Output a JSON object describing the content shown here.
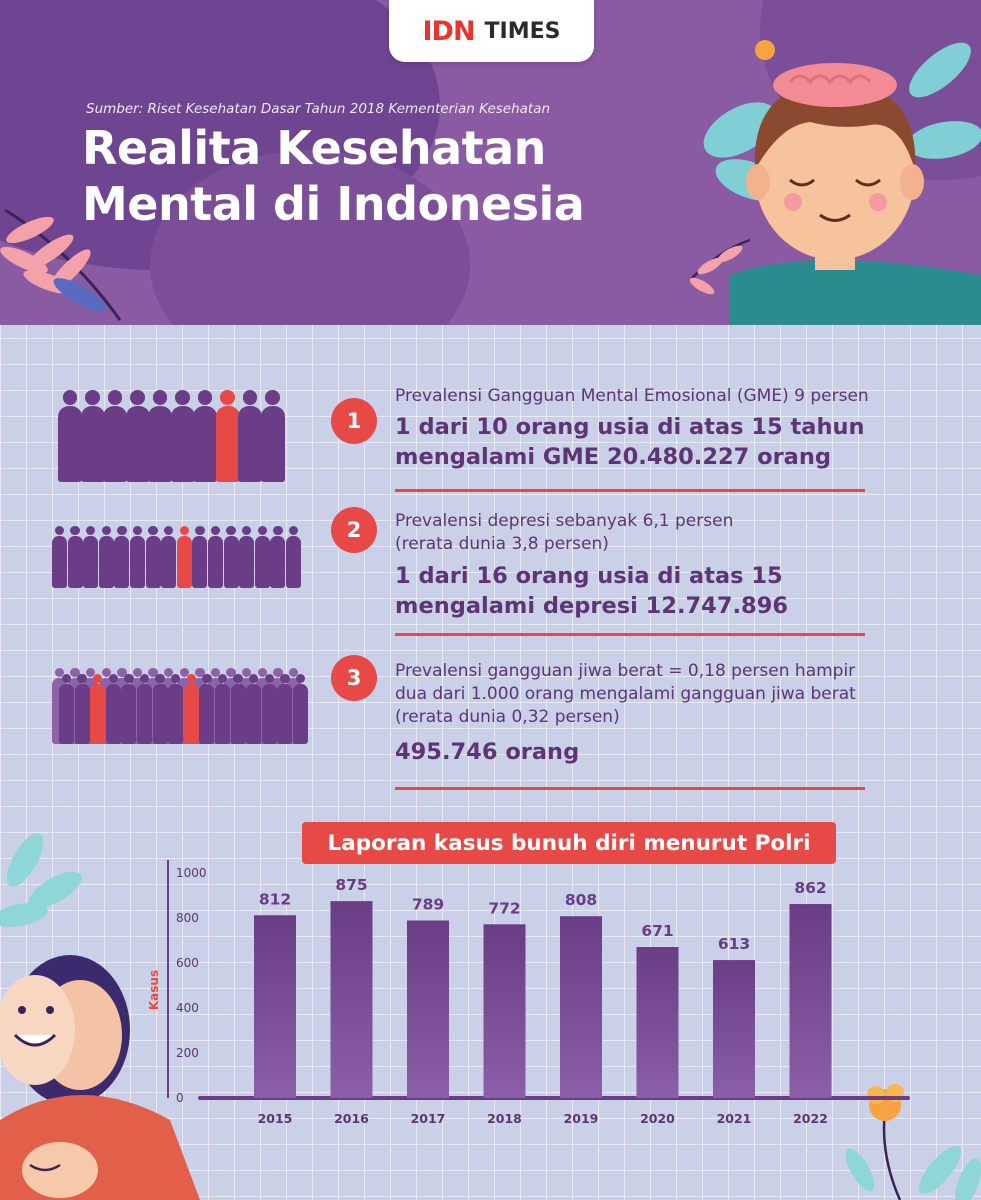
{
  "logo": {
    "part1": "IDN",
    "part2": "TIMES"
  },
  "source": "Sumber: Riset Kesehatan Dasar Tahun 2018 Kementerian Kesehatan",
  "title_line1": "Realita Kesehatan",
  "title_line2": "Mental di Indonesia",
  "colors": {
    "purple_dark": "#6a3d86",
    "purple_header": "#8a5aa3",
    "accent_red": "#e74a46",
    "text_purple": "#5d3575"
  },
  "items": [
    {
      "number": "1",
      "lines_small": [
        "Prevalensi Gangguan Mental Emosional (GME) 9 persen"
      ],
      "lines_big": [
        "1 dari 10 orang usia di atas 15 tahun",
        "mengalami GME 20.480.227 orang"
      ]
    },
    {
      "number": "2",
      "lines_small": [
        "Prevalensi depresi sebanyak 6,1  persen",
        "(rerata dunia 3,8 persen)"
      ],
      "lines_big": [
        "1 dari 16 orang usia di atas 15",
        "mengalami depresi  12.747.896"
      ]
    },
    {
      "number": "3",
      "lines_small": [
        "Prevalensi gangguan jiwa berat = 0,18 persen hampir",
        "dua dari 1.000 orang mengalami gangguan jiwa berat",
        "(rerata dunia 0,32 persen)"
      ],
      "lines_big": [
        "495.746 orang"
      ]
    }
  ],
  "chart_data": {
    "type": "bar",
    "title": "Laporan kasus bunuh diri menurut Polri",
    "xlabel": "",
    "ylabel": "Kasus",
    "categories": [
      "2015",
      "2016",
      "2017",
      "2018",
      "2019",
      "2020",
      "2021",
      "2022"
    ],
    "values": [
      812,
      875,
      789,
      772,
      808,
      671,
      613,
      862
    ],
    "yticks": [
      0,
      200,
      400,
      600,
      800,
      1000
    ],
    "ylim": [
      0,
      1000
    ],
    "grid": false,
    "legend": "none",
    "bar_color": "#6a3d86"
  }
}
